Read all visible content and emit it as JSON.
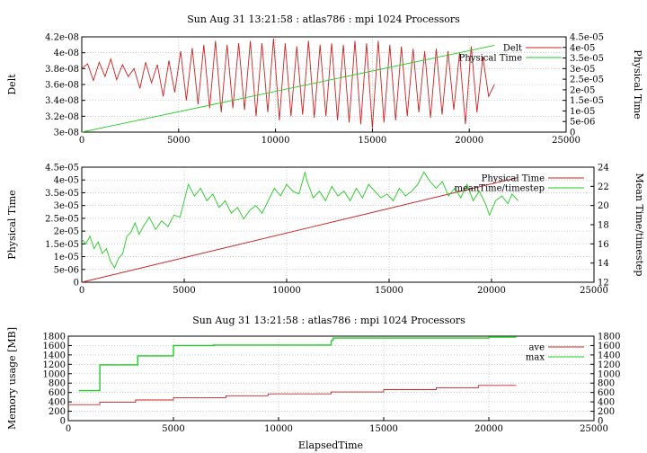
{
  "colors": {
    "red": "#cc2222",
    "green": "#22cc22",
    "grid": "#b0b0b0"
  },
  "chart_data": [
    {
      "type": "line",
      "title": "Sun Aug 31 13:21:58 : atlas786 : mpi 1024 Processors",
      "ylabel": "Delt",
      "y2label": "Physical Time",
      "xlim": [
        0,
        25000
      ],
      "ylim": [
        3e-08,
        4.2e-08
      ],
      "y2lim": [
        0,
        4.5e-05
      ],
      "xticks": [
        "0",
        "5000",
        "10000",
        "15000",
        "20000",
        "25000"
      ],
      "yticks": [
        "3e-08",
        "3.2e-08",
        "3.4e-08",
        "3.6e-08",
        "3.8e-08",
        "4e-08",
        "4.2e-08"
      ],
      "y2ticks": [
        "0",
        "5e-06",
        "1e-05",
        "1.5e-05",
        "2e-05",
        "2.5e-05",
        "3e-05",
        "3.5e-05",
        "4e-05",
        "4.5e-05"
      ],
      "legend_position": "top-right",
      "series": [
        {
          "name": "Delt",
          "axis": "y1",
          "color": "red",
          "x": [
            0,
            300,
            600,
            900,
            1200,
            1500,
            1800,
            2100,
            2400,
            2700,
            3000,
            3300,
            3600,
            3900,
            4200,
            4500,
            4800,
            5100,
            5400,
            5700,
            6000,
            6300,
            6600,
            6900,
            7200,
            7500,
            7800,
            8100,
            8400,
            8700,
            9000,
            9300,
            9600,
            9900,
            10200,
            10500,
            10800,
            11100,
            11400,
            11700,
            12000,
            12300,
            12600,
            12900,
            13200,
            13500,
            13800,
            14100,
            14400,
            14700,
            15000,
            15300,
            15600,
            15900,
            16200,
            16500,
            16800,
            17100,
            17400,
            17700,
            18000,
            18300,
            18600,
            18900,
            19200,
            19500,
            19800,
            20100,
            20400,
            20700,
            21000,
            21300
          ],
          "values": [
            3.8e-08,
            3.86e-08,
            3.65e-08,
            3.88e-08,
            3.7e-08,
            3.92e-08,
            3.66e-08,
            3.85e-08,
            3.7e-08,
            3.8e-08,
            3.55e-08,
            3.88e-08,
            3.62e-08,
            3.85e-08,
            3.45e-08,
            3.9e-08,
            3.5e-08,
            4.02e-08,
            3.4e-08,
            4.06e-08,
            3.35e-08,
            4.1e-08,
            3.3e-08,
            4.15e-08,
            3.25e-08,
            4.1e-08,
            3.3e-08,
            4.12e-08,
            3.28e-08,
            4.15e-08,
            3.2e-08,
            4.12e-08,
            3.25e-08,
            4.18e-08,
            3.15e-08,
            4.12e-08,
            3.2e-08,
            4.08e-08,
            3.22e-08,
            4.15e-08,
            3.18e-08,
            4.1e-08,
            3.2e-08,
            4.12e-08,
            3.15e-08,
            4.1e-08,
            3.12e-08,
            4.15e-08,
            3.1e-08,
            4.12e-08,
            3.05e-08,
            4.15e-08,
            3.12e-08,
            4.1e-08,
            3.15e-08,
            4.08e-08,
            3.2e-08,
            4.05e-08,
            3.25e-08,
            4.02e-08,
            3.18e-08,
            4.05e-08,
            3.22e-08,
            4.02e-08,
            3.28e-08,
            4e-08,
            3.1e-08,
            4.08e-08,
            3.25e-08,
            3.95e-08,
            3.45e-08,
            3.6e-08
          ]
        },
        {
          "name": "Physical Time",
          "axis": "y2",
          "color": "green",
          "x": [
            0,
            21300
          ],
          "values": [
            0,
            4.1e-05
          ]
        }
      ]
    },
    {
      "type": "line",
      "title": "",
      "ylabel": "Physical Time",
      "y2label": "Mean Time/timestep",
      "xlim": [
        0,
        25000
      ],
      "ylim": [
        0,
        4.5e-05
      ],
      "y2lim": [
        12,
        24
      ],
      "xticks": [
        "0",
        "5000",
        "10000",
        "15000",
        "20000",
        "25000"
      ],
      "yticks": [
        "0",
        "5e-06",
        "1e-05",
        "1.5e-05",
        "2e-05",
        "2.5e-05",
        "3e-05",
        "3.5e-05",
        "4e-05",
        "4.5e-05"
      ],
      "y2ticks": [
        "12",
        "14",
        "16",
        "18",
        "20",
        "22",
        "24"
      ],
      "legend_position": "top-right",
      "series": [
        {
          "name": "Physical Time",
          "axis": "y1",
          "color": "red",
          "x": [
            0,
            21300
          ],
          "values": [
            0,
            4.1e-05
          ]
        },
        {
          "name": "meanTime/timestep",
          "axis": "y2",
          "color": "green",
          "x": [
            0,
            200,
            400,
            600,
            800,
            1000,
            1200,
            1400,
            1600,
            1800,
            2000,
            2200,
            2400,
            2600,
            2800,
            3000,
            3300,
            3600,
            3900,
            4200,
            4500,
            4800,
            5000,
            5200,
            5500,
            5800,
            6100,
            6400,
            6700,
            7000,
            7300,
            7600,
            7900,
            8200,
            8500,
            8800,
            9100,
            9400,
            9700,
            10000,
            10300,
            10600,
            10900,
            11000,
            11300,
            11600,
            11900,
            12200,
            12500,
            12800,
            13100,
            13400,
            13700,
            14000,
            14300,
            14600,
            14900,
            15200,
            15500,
            15800,
            16100,
            16400,
            16700,
            17000,
            17300,
            17600,
            17900,
            18200,
            18500,
            18800,
            19100,
            19400,
            19700,
            19900,
            20200,
            20500,
            20800,
            21000,
            21300
          ],
          "values": [
            16.5,
            16,
            16.8,
            15.5,
            16.2,
            15,
            15.5,
            14.2,
            13.5,
            14.5,
            15,
            16.8,
            17.2,
            18.2,
            17,
            17.8,
            18.8,
            17.5,
            18.4,
            17.8,
            19,
            18.8,
            20.5,
            22.2,
            21,
            21.8,
            20.5,
            21.2,
            19.8,
            20.5,
            19.2,
            19.8,
            18.6,
            19.5,
            20,
            19.2,
            20.5,
            21.8,
            21,
            22.2,
            21.5,
            21.2,
            23.5,
            22.5,
            20.8,
            21.5,
            20.5,
            22,
            21,
            21.5,
            20.5,
            21.8,
            20.8,
            22.2,
            21.5,
            20.8,
            21.2,
            20.5,
            21.8,
            21,
            21.5,
            22.2,
            23.5,
            22.5,
            21.8,
            22.5,
            21,
            21.8,
            20.8,
            22.2,
            20.5,
            21.5,
            20.2,
            19,
            20.5,
            21,
            20.2,
            21.2,
            20.5
          ]
        }
      ]
    },
    {
      "type": "line",
      "title": "Sun Aug 31 13:21:58 : atlas786 : mpi 1024 Processors",
      "xlabel": "ElapsedTime",
      "ylabel": "Memory usage [MB]",
      "xlim": [
        0,
        25000
      ],
      "ylim": [
        0,
        1800
      ],
      "y2lim": [
        0,
        1800
      ],
      "xticks": [
        "0",
        "5000",
        "10000",
        "15000",
        "20000",
        "25000"
      ],
      "yticks": [
        "0",
        "200",
        "400",
        "600",
        "800",
        "1000",
        "1200",
        "1400",
        "1600",
        "1800"
      ],
      "y2ticks": [
        "0",
        "200",
        "400",
        "600",
        "800",
        "1000",
        "1200",
        "1400",
        "1600",
        "1800"
      ],
      "legend_position": "top-right",
      "series": [
        {
          "name": "ave",
          "axis": "y1",
          "color": "red",
          "x": [
            0,
            1500,
            1500,
            3200,
            3200,
            5000,
            5000,
            7500,
            7500,
            9500,
            9500,
            12500,
            12500,
            15000,
            15000,
            17500,
            17500,
            19500,
            19500,
            21300
          ],
          "values": [
            340,
            340,
            390,
            390,
            440,
            440,
            490,
            490,
            530,
            530,
            570,
            570,
            610,
            610,
            660,
            660,
            700,
            700,
            750,
            750
          ]
        },
        {
          "name": "max",
          "axis": "y1",
          "color": "green",
          "x": [
            500,
            1500,
            1500,
            3300,
            3300,
            5000,
            5000,
            6900,
            6900,
            12500,
            12500,
            12600,
            12600,
            20000,
            20000,
            21300
          ],
          "values": [
            640,
            640,
            1190,
            1190,
            1380,
            1380,
            1600,
            1600,
            1610,
            1610,
            1700,
            1720,
            1760,
            1760,
            1780,
            1780
          ]
        }
      ]
    }
  ]
}
